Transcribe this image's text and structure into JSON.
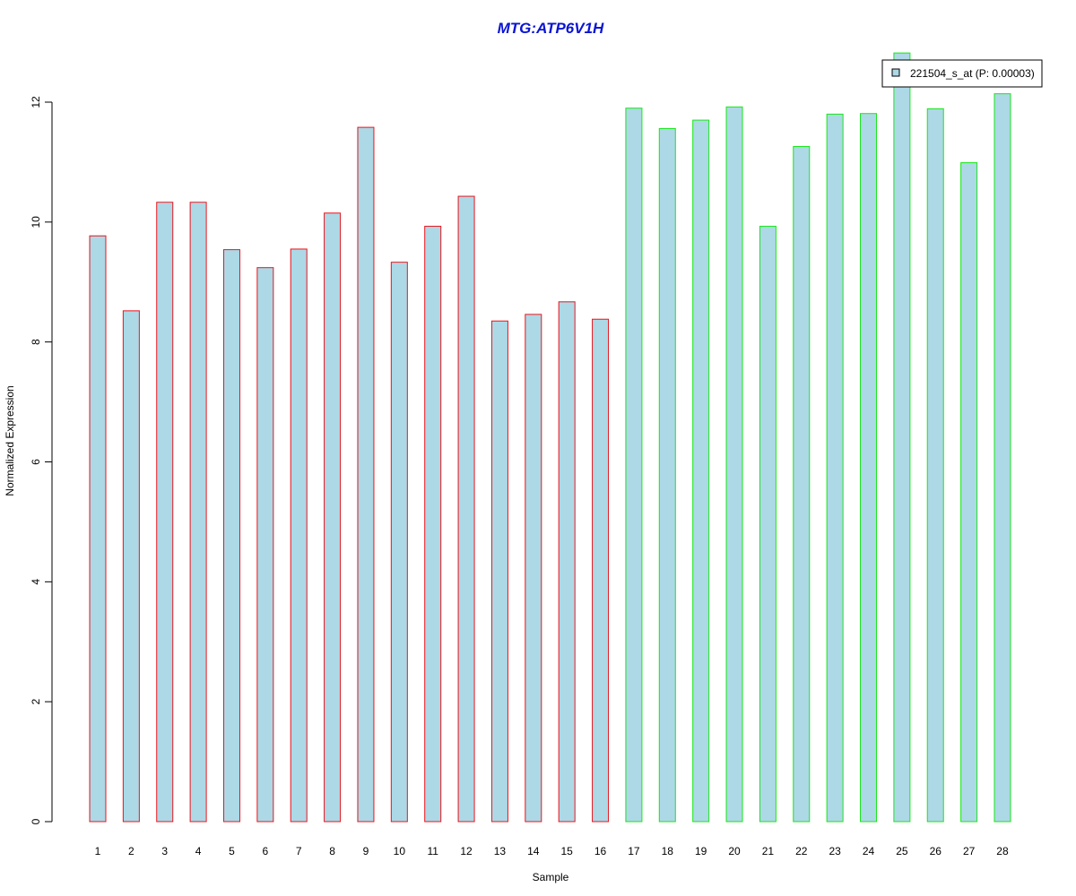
{
  "chart_data": {
    "type": "bar",
    "title": "MTG:ATP6V1H",
    "xlabel": "Sample",
    "ylabel": "Normalized Expression",
    "ylim": [
      0,
      12
    ],
    "yticks": [
      0,
      2,
      4,
      6,
      8,
      10,
      12
    ],
    "categories": [
      "1",
      "2",
      "3",
      "4",
      "5",
      "6",
      "7",
      "8",
      "9",
      "10",
      "11",
      "12",
      "13",
      "14",
      "15",
      "16",
      "17",
      "18",
      "19",
      "20",
      "21",
      "22",
      "23",
      "24",
      "25",
      "26",
      "27",
      "28"
    ],
    "series": [
      {
        "name": "221504_s_at (P: 0.00003)",
        "values": [
          9.77,
          8.52,
          10.33,
          10.33,
          9.54,
          9.24,
          9.55,
          10.15,
          11.58,
          9.33,
          9.93,
          10.43,
          8.35,
          8.46,
          8.67,
          8.38,
          11.9,
          11.56,
          11.7,
          11.92,
          9.93,
          11.26,
          11.8,
          11.81,
          12.82,
          11.89,
          10.99,
          12.14
        ]
      }
    ],
    "groups": [
      {
        "from": 1,
        "to": 16,
        "border_color": "#e8141c"
      },
      {
        "from": 17,
        "to": 28,
        "border_color": "#19e619"
      }
    ],
    "bar_fill": "#add8e6",
    "title_color": "#0a14d2",
    "legend_position": "top-right",
    "grid": false
  }
}
